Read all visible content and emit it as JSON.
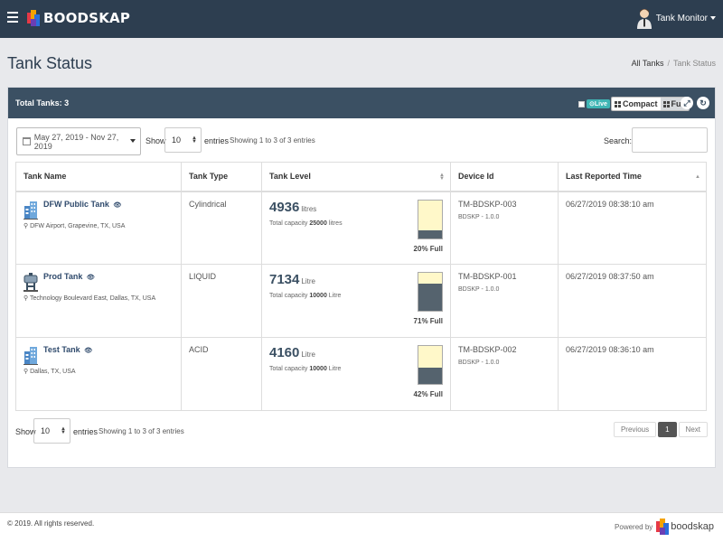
{
  "header": {
    "brand": "BOODSKAP",
    "user_name": "Tank Monitor"
  },
  "page": {
    "title": "Tank Status",
    "breadcrumb": [
      "All Tanks",
      "Tank Status"
    ]
  },
  "panel": {
    "total_label": "Total Tanks: 3",
    "live_label": "Live",
    "compact_label": "Compact",
    "full_label": "Full",
    "expand_glyph": "⤢",
    "refresh_glyph": "↻"
  },
  "controls": {
    "date_range": "May 27, 2019 - Nov 27, 2019",
    "show_label": "Show",
    "page_size": "10",
    "entries_label": "entries",
    "info_text": "Showing 1 to 3 of 3 entries",
    "search_label": "Search:"
  },
  "table": {
    "columns": [
      "Tank Name",
      "Tank Type",
      "Tank Level",
      "Device Id",
      "Last Reported Time"
    ],
    "capacity_prefix": "Total capacity",
    "rows": [
      {
        "name": "DFW Public Tank",
        "location": "DFW Airport, Grapevine, TX, USA",
        "type": "Cylindrical",
        "level": "4936",
        "unit": "litres",
        "capacity": "25000",
        "capacity_unit": "litres",
        "fill_percent": 20,
        "fill_label": "20% Full",
        "device_id": "TM-BDSKP-003",
        "device_version": "BDSKP - 1.0.0",
        "reported": "06/27/2019 08:38:10 am",
        "icon": "building-icon"
      },
      {
        "name": "Prod Tank",
        "location": "Technology Boulevard East, Dallas, TX, USA",
        "type": "LIQUID",
        "level": "7134",
        "unit": "Litre",
        "capacity": "10000",
        "capacity_unit": "Litre",
        "fill_percent": 71,
        "fill_label": "71% Full",
        "device_id": "TM-BDSKP-001",
        "device_version": "BDSKP - 1.0.0",
        "reported": "06/27/2019 08:37:50 am",
        "icon": "factory-icon"
      },
      {
        "name": "Test Tank",
        "location": "Dallas, TX, USA",
        "type": "ACID",
        "level": "4160",
        "unit": "Litre",
        "capacity": "10000",
        "capacity_unit": "Litre",
        "fill_percent": 42,
        "fill_label": "42% Full",
        "device_id": "TM-BDSKP-002",
        "device_version": "BDSKP - 1.0.0",
        "reported": "06/27/2019 08:36:10 am",
        "icon": "building-icon"
      }
    ]
  },
  "pagination": {
    "previous": "Previous",
    "current": "1",
    "next": "Next"
  },
  "footer": {
    "copyright": "© 2019. All rights reserved.",
    "powered_by": "Powered by",
    "powered_brand": "boodskap"
  },
  "colors": {
    "header_bg": "#2d3e50",
    "panel_head_bg": "#3b5063",
    "gauge_empty": "#fff8c9",
    "gauge_fill": "#55636e",
    "live_badge": "#3fb5b4"
  }
}
